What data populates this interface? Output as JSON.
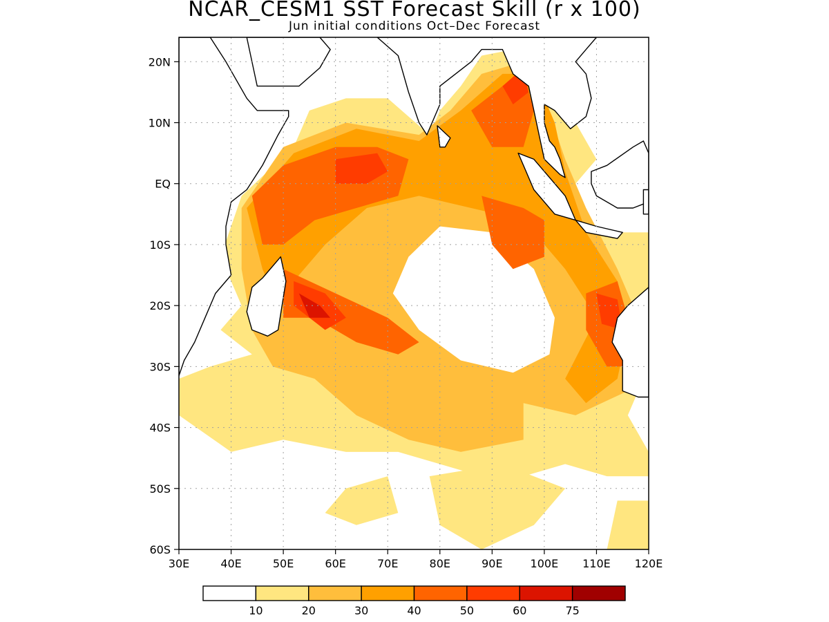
{
  "title": "NCAR_CESM1 SST Forecast Skill (r x 100)",
  "subtitle": "Jun initial conditions  Oct–Dec Forecast",
  "map": {
    "lon_range": [
      30,
      120
    ],
    "lat_range": [
      -60,
      24
    ],
    "lat_ticks": [
      {
        "v": 20,
        "label": "20N"
      },
      {
        "v": 10,
        "label": "10N"
      },
      {
        "v": 0,
        "label": "EQ"
      },
      {
        "v": -10,
        "label": "10S"
      },
      {
        "v": -20,
        "label": "20S"
      },
      {
        "v": -30,
        "label": "30S"
      },
      {
        "v": -40,
        "label": "40S"
      },
      {
        "v": -50,
        "label": "50S"
      },
      {
        "v": -60,
        "label": "60S"
      }
    ],
    "lon_ticks": [
      {
        "v": 30,
        "label": "30E"
      },
      {
        "v": 40,
        "label": "40E"
      },
      {
        "v": 50,
        "label": "50E"
      },
      {
        "v": 60,
        "label": "60E"
      },
      {
        "v": 70,
        "label": "70E"
      },
      {
        "v": 80,
        "label": "80E"
      },
      {
        "v": 90,
        "label": "90E"
      },
      {
        "v": 100,
        "label": "100E"
      },
      {
        "v": 110,
        "label": "110E"
      },
      {
        "v": 120,
        "label": "120E"
      }
    ],
    "grid": "dotted",
    "land_fill": "#ffffff",
    "coastline_color": "#000000"
  },
  "colorbar": {
    "colors": [
      "#ffffff",
      "#ffe680",
      "#ffbe3c",
      "#ffa000",
      "#ff6400",
      "#ff3c00",
      "#dc1400",
      "#a00000"
    ],
    "labels": [
      "10",
      "20",
      "30",
      "40",
      "50",
      "60",
      "75"
    ]
  },
  "skill_regions": [
    {
      "level": 1,
      "pts": [
        [
          38,
          -24
        ],
        [
          42,
          -20
        ],
        [
          38,
          -12
        ],
        [
          42,
          -2
        ],
        [
          52,
          6
        ],
        [
          55,
          12
        ],
        [
          62,
          14
        ],
        [
          70,
          14
        ],
        [
          78,
          8
        ],
        [
          80,
          12
        ],
        [
          84,
          16
        ],
        [
          88,
          21
        ],
        [
          94,
          22
        ],
        [
          100,
          22
        ],
        [
          104,
          14
        ],
        [
          106,
          10
        ],
        [
          110,
          4
        ],
        [
          106,
          0
        ],
        [
          104,
          -6
        ],
        [
          110,
          -8
        ],
        [
          120,
          -8
        ],
        [
          120,
          -30
        ],
        [
          116,
          -38
        ],
        [
          120,
          -44
        ],
        [
          120,
          -48
        ],
        [
          112,
          -48
        ],
        [
          104,
          -46
        ],
        [
          96,
          -48
        ],
        [
          88,
          -48
        ],
        [
          80,
          -46
        ],
        [
          72,
          -44
        ],
        [
          62,
          -44
        ],
        [
          50,
          -42
        ],
        [
          40,
          -44
        ],
        [
          30,
          -38
        ],
        [
          30,
          -32
        ],
        [
          36,
          -30
        ],
        [
          44,
          -28
        ]
      ]
    },
    {
      "level": 1,
      "pts": [
        [
          78,
          -48
        ],
        [
          92,
          -46
        ],
        [
          104,
          -50
        ],
        [
          98,
          -56
        ],
        [
          88,
          -60
        ],
        [
          80,
          -56
        ]
      ]
    },
    {
      "level": 1,
      "pts": [
        [
          62,
          -50
        ],
        [
          70,
          -48
        ],
        [
          72,
          -54
        ],
        [
          64,
          -56
        ],
        [
          58,
          -54
        ]
      ]
    },
    {
      "level": 1,
      "pts": [
        [
          114,
          -52
        ],
        [
          120,
          -52
        ],
        [
          120,
          -60
        ],
        [
          112,
          -60
        ]
      ]
    },
    {
      "level": 1,
      "pts": [
        [
          36,
          -34
        ],
        [
          50,
          -34
        ],
        [
          52,
          -38
        ],
        [
          40,
          -40
        ],
        [
          34,
          -38
        ]
      ]
    },
    {
      "level": 0,
      "pts": [
        [
          72,
          -12
        ],
        [
          80,
          -6
        ],
        [
          90,
          -8
        ],
        [
          98,
          -14
        ],
        [
          104,
          -22
        ],
        [
          102,
          -28
        ],
        [
          94,
          -34
        ],
        [
          82,
          -30
        ],
        [
          74,
          -24
        ],
        [
          70,
          -18
        ]
      ]
    },
    {
      "level": 2,
      "pts": [
        [
          42,
          -4
        ],
        [
          50,
          6
        ],
        [
          62,
          10
        ],
        [
          76,
          8
        ],
        [
          82,
          12
        ],
        [
          88,
          18
        ],
        [
          96,
          20
        ],
        [
          100,
          14
        ],
        [
          104,
          4
        ],
        [
          108,
          -4
        ],
        [
          114,
          -14
        ],
        [
          118,
          -22
        ],
        [
          116,
          -34
        ],
        [
          106,
          -38
        ],
        [
          96,
          -36
        ],
        [
          96,
          -42
        ],
        [
          84,
          -44
        ],
        [
          74,
          -42
        ],
        [
          64,
          -38
        ],
        [
          56,
          -32
        ],
        [
          48,
          -30
        ],
        [
          44,
          -24
        ],
        [
          42,
          -14
        ]
      ]
    },
    {
      "level": 0,
      "pts": [
        [
          74,
          -12
        ],
        [
          80,
          -7
        ],
        [
          90,
          -8
        ],
        [
          98,
          -14
        ],
        [
          102,
          -22
        ],
        [
          101,
          -28
        ],
        [
          94,
          -31
        ],
        [
          84,
          -29
        ],
        [
          76,
          -24
        ],
        [
          71,
          -18
        ]
      ]
    },
    {
      "level": 3,
      "pts": [
        [
          43,
          -4
        ],
        [
          52,
          5
        ],
        [
          64,
          9
        ],
        [
          76,
          7
        ],
        [
          84,
          12
        ],
        [
          92,
          18
        ],
        [
          98,
          18
        ],
        [
          102,
          10
        ],
        [
          104,
          2
        ],
        [
          108,
          -8
        ],
        [
          114,
          -16
        ],
        [
          116,
          -24
        ],
        [
          114,
          -32
        ],
        [
          108,
          -36
        ],
        [
          104,
          -32
        ],
        [
          110,
          -22
        ],
        [
          104,
          -14
        ],
        [
          96,
          -6
        ],
        [
          86,
          -4
        ],
        [
          76,
          -2
        ],
        [
          66,
          -4
        ],
        [
          58,
          -10
        ],
        [
          52,
          -16
        ],
        [
          48,
          -18
        ],
        [
          46,
          -14
        ]
      ]
    },
    {
      "level": 4,
      "pts": [
        [
          44,
          -2
        ],
        [
          50,
          3
        ],
        [
          60,
          6
        ],
        [
          68,
          6
        ],
        [
          74,
          4
        ],
        [
          72,
          -2
        ],
        [
          64,
          -4
        ],
        [
          56,
          -6
        ],
        [
          50,
          -10
        ],
        [
          46,
          -10
        ]
      ]
    },
    {
      "level": 4,
      "pts": [
        [
          50,
          -14
        ],
        [
          60,
          -18
        ],
        [
          70,
          -22
        ],
        [
          76,
          -26
        ],
        [
          72,
          -28
        ],
        [
          64,
          -26
        ],
        [
          56,
          -22
        ],
        [
          50,
          -22
        ]
      ]
    },
    {
      "level": 4,
      "pts": [
        [
          86,
          12
        ],
        [
          92,
          16
        ],
        [
          96,
          18
        ],
        [
          98,
          12
        ],
        [
          96,
          6
        ],
        [
          90,
          6
        ]
      ]
    },
    {
      "level": 4,
      "pts": [
        [
          88,
          -2
        ],
        [
          96,
          -4
        ],
        [
          100,
          -6
        ],
        [
          100,
          -12
        ],
        [
          94,
          -14
        ],
        [
          90,
          -10
        ]
      ]
    },
    {
      "level": 4,
      "pts": [
        [
          108,
          -18
        ],
        [
          114,
          -16
        ],
        [
          116,
          -22
        ],
        [
          116,
          -30
        ],
        [
          112,
          -30
        ],
        [
          108,
          -24
        ]
      ]
    },
    {
      "level": 5,
      "pts": [
        [
          60,
          4
        ],
        [
          68,
          5
        ],
        [
          70,
          2
        ],
        [
          66,
          0
        ],
        [
          60,
          0
        ]
      ]
    },
    {
      "level": 5,
      "pts": [
        [
          52,
          -16
        ],
        [
          58,
          -18
        ],
        [
          62,
          -22
        ],
        [
          58,
          -24
        ],
        [
          52,
          -20
        ]
      ]
    },
    {
      "level": 5,
      "pts": [
        [
          92,
          16
        ],
        [
          96,
          19
        ],
        [
          97,
          15
        ],
        [
          94,
          13
        ]
      ]
    },
    {
      "level": 5,
      "pts": [
        [
          110,
          -18
        ],
        [
          114,
          -19
        ],
        [
          115,
          -24
        ],
        [
          111,
          -23
        ]
      ]
    },
    {
      "level": 6,
      "pts": [
        [
          53,
          -18
        ],
        [
          57,
          -20
        ],
        [
          59,
          -22
        ],
        [
          55,
          -22
        ]
      ]
    }
  ],
  "land_polygons": [
    [
      [
        30,
        24
      ],
      [
        36,
        24
      ],
      [
        39,
        20
      ],
      [
        43,
        14
      ],
      [
        45,
        12
      ],
      [
        51,
        12
      ],
      [
        51,
        11
      ],
      [
        49,
        8
      ],
      [
        46,
        3
      ],
      [
        43,
        -1
      ],
      [
        40,
        -3
      ],
      [
        39,
        -7
      ],
      [
        39,
        -10
      ],
      [
        40,
        -15
      ],
      [
        37,
        -18
      ],
      [
        35,
        -22
      ],
      [
        33,
        -26
      ],
      [
        31,
        -29
      ],
      [
        30,
        -31.5
      ]
    ],
    [
      [
        43,
        24
      ],
      [
        45,
        16
      ],
      [
        53,
        16
      ],
      [
        57,
        19
      ],
      [
        59,
        22
      ],
      [
        57,
        24
      ],
      [
        50,
        24
      ]
    ],
    [
      [
        68,
        24
      ],
      [
        72,
        21
      ],
      [
        74,
        15
      ],
      [
        76,
        10
      ],
      [
        77.5,
        8
      ],
      [
        80,
        13
      ],
      [
        80,
        16
      ],
      [
        86,
        20
      ],
      [
        88,
        22
      ],
      [
        90,
        22
      ],
      [
        92,
        22
      ],
      [
        94,
        18
      ],
      [
        97,
        16
      ],
      [
        98,
        12
      ],
      [
        99,
        8
      ],
      [
        100,
        4
      ],
      [
        103,
        1.5
      ],
      [
        104,
        1
      ],
      [
        103,
        4
      ],
      [
        102,
        6
      ],
      [
        101,
        7
      ],
      [
        100,
        10
      ],
      [
        100,
        13
      ],
      [
        102,
        12
      ],
      [
        105,
        9
      ],
      [
        108,
        11
      ],
      [
        109,
        14
      ],
      [
        108,
        18
      ],
      [
        106,
        20
      ],
      [
        108,
        22
      ],
      [
        110,
        24
      ]
    ],
    [
      [
        95,
        5
      ],
      [
        98,
        4
      ],
      [
        102,
        0
      ],
      [
        104,
        -2
      ],
      [
        106,
        -6
      ],
      [
        102,
        -5
      ],
      [
        98,
        -1
      ]
    ],
    [
      [
        106,
        -6
      ],
      [
        110,
        -7
      ],
      [
        115,
        -8
      ],
      [
        114,
        -9
      ],
      [
        108,
        -8
      ]
    ],
    [
      [
        109,
        2
      ],
      [
        112,
        3
      ],
      [
        117,
        6
      ],
      [
        119,
        7
      ],
      [
        120,
        5
      ],
      [
        120,
        -3
      ],
      [
        117,
        -4
      ],
      [
        114,
        -4
      ],
      [
        110,
        -2
      ],
      [
        109,
        0
      ]
    ],
    [
      [
        119,
        -1
      ],
      [
        120,
        -1
      ],
      [
        120,
        -5
      ],
      [
        119,
        -5
      ]
    ],
    [
      [
        120,
        -17
      ],
      [
        116,
        -20
      ],
      [
        114,
        -22
      ],
      [
        113,
        -26
      ],
      [
        115,
        -29
      ],
      [
        115,
        -34
      ],
      [
        118,
        -35
      ],
      [
        120,
        -35
      ]
    ],
    [
      [
        49.5,
        -12
      ],
      [
        50.5,
        -16
      ],
      [
        49,
        -24
      ],
      [
        47,
        -25
      ],
      [
        44,
        -24
      ],
      [
        43,
        -21
      ],
      [
        44,
        -17
      ],
      [
        46,
        -15.5
      ]
    ],
    [
      [
        79.5,
        9.5
      ],
      [
        82,
        7.5
      ],
      [
        81,
        6
      ],
      [
        80,
        6
      ]
    ]
  ]
}
